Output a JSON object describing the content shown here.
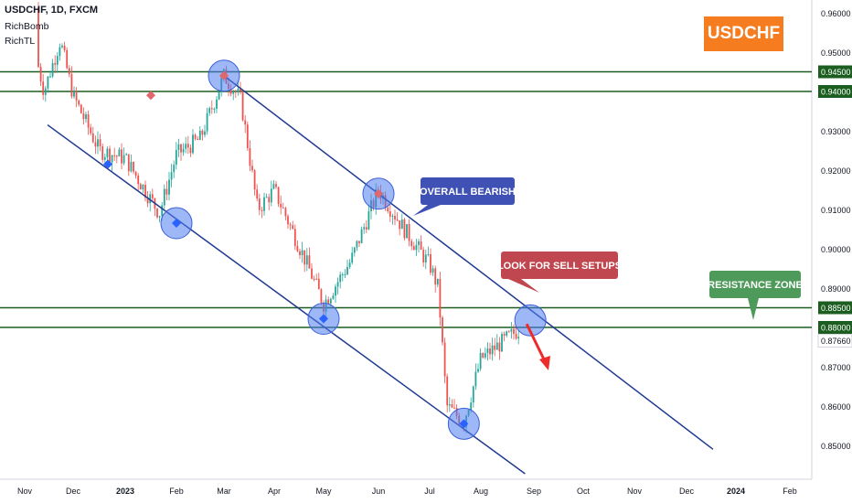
{
  "header": {
    "symbol_line": "USDCHF, 1D, FXCM",
    "indicator_1": "RichBomb",
    "indicator_2": "RichTL"
  },
  "badge": {
    "text": "USDCHF",
    "color": "#f57c1f"
  },
  "colors": {
    "up_candle": "#26a69a",
    "down_candle": "#ef5350",
    "channel_line": "#1f3a93",
    "level_line": "#1b5e20",
    "circle_fill": "#4f7cf0",
    "callout_blue": "#3f51b5",
    "callout_red": "#c0474f",
    "callout_green": "#4e9a5a",
    "arrow": "#ef2a2a"
  },
  "chart_data": {
    "type": "candlestick",
    "symbol": "USDCHF",
    "timeframe": "1D",
    "source": "FXCM",
    "x_axis_labels": [
      "Nov",
      "Dec",
      "2023",
      "Feb",
      "Mar",
      "Apr",
      "May",
      "Jun",
      "Jul",
      "Aug",
      "Sep",
      "Oct",
      "Nov",
      "Dec",
      "2024",
      "Feb"
    ],
    "y_axis_labels": [
      "0.96000",
      "0.95000",
      "0.94000",
      "0.93000",
      "0.92000",
      "0.91000",
      "0.90000",
      "0.89000",
      "0.88000",
      "0.87000",
      "0.86000",
      "0.85000"
    ],
    "ylim": [
      0.8435,
      0.9625
    ],
    "grid": false,
    "price_path": [
      [
        "Nov",
        0.9615
      ],
      [
        "Nov 12",
        0.94
      ],
      [
        "Nov 22",
        0.953
      ],
      [
        "Dec",
        0.939
      ],
      [
        "Dec 15",
        0.925
      ],
      [
        "2023",
        0.923
      ],
      [
        "Jan 20",
        0.909
      ],
      [
        "Feb",
        0.924
      ],
      [
        "Feb 15",
        0.928
      ],
      [
        "Mar",
        0.944
      ],
      [
        "Mar 10",
        0.938
      ],
      [
        "Mar 20",
        0.91
      ],
      [
        "Apr",
        0.915
      ],
      [
        "Apr 20",
        0.896
      ],
      [
        "May",
        0.886
      ],
      [
        "May 15",
        0.897
      ],
      [
        "Jun",
        0.915
      ],
      [
        "Jun 15",
        0.905
      ],
      [
        "Jul",
        0.896
      ],
      [
        "Jul 5",
        0.89
      ],
      [
        "Jul 10",
        0.86
      ],
      [
        "Jul 20",
        0.856
      ],
      [
        "Aug",
        0.872
      ],
      [
        "Aug 20",
        0.879
      ],
      [
        "Sep",
        0.881
      ]
    ],
    "horizontal_levels": [
      {
        "value": 0.945,
        "label": "0.94500"
      },
      {
        "value": 0.94,
        "label": "0.94000"
      },
      {
        "value": 0.885,
        "label": "0.88500"
      },
      {
        "value": 0.88,
        "label": "0.88000"
      }
    ],
    "current_price": {
      "value": 0.8766,
      "label": "0.87660"
    },
    "channel": {
      "upper": {
        "from": [
          "Mar",
          0.944
        ],
        "to": [
          "Dec 20",
          0.849
        ]
      },
      "lower": {
        "from": [
          "Nov 20",
          0.9315
        ],
        "to": [
          "Aug 25",
          0.8428
        ]
      }
    },
    "touch_points": [
      {
        "x": "Mar",
        "y": 0.944,
        "side": "upper"
      },
      {
        "x": "Jun",
        "y": 0.914,
        "side": "upper"
      },
      {
        "x": "Aug 28",
        "y": 0.8818,
        "side": "upper"
      },
      {
        "x": "Feb",
        "y": 0.9065,
        "side": "lower"
      },
      {
        "x": "May",
        "y": 0.8822,
        "side": "lower"
      },
      {
        "x": "Jul 20",
        "y": 0.8555,
        "side": "lower"
      }
    ],
    "markers": [
      {
        "x": "Dec 20",
        "y": 0.9215,
        "kind": "buy"
      },
      {
        "x": "Jan 15",
        "y": 0.939,
        "kind": "sell"
      },
      {
        "x": "Feb",
        "y": 0.9065,
        "kind": "buy"
      },
      {
        "x": "Mar",
        "y": 0.944,
        "kind": "sell"
      },
      {
        "x": "May",
        "y": 0.8822,
        "kind": "buy"
      },
      {
        "x": "Jun",
        "y": 0.914,
        "kind": "sell"
      },
      {
        "x": "Jul 20",
        "y": 0.8555,
        "kind": "buy"
      }
    ],
    "annotations": [
      {
        "text": "OVERALL BEARISH",
        "style": "blue"
      },
      {
        "text": "LOOK FOR SELL SETUPS",
        "style": "red"
      },
      {
        "text": "RESISTANCE ZONE",
        "style": "green"
      }
    ],
    "projection_arrow": {
      "from": [
        "Aug 28",
        0.8818
      ],
      "to": [
        "Sep 5",
        0.87
      ]
    }
  }
}
